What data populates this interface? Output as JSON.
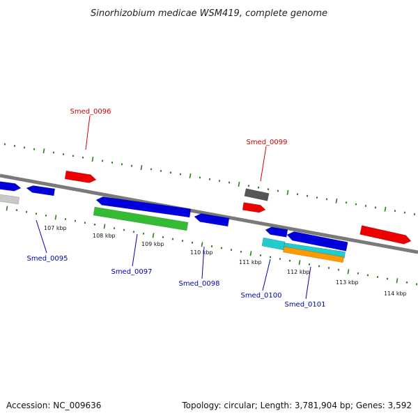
{
  "header": {
    "title": "Sinorhizobium medicae WSM419, complete genome"
  },
  "footer": {
    "accession": "Accession: NC_009636",
    "summary": "Topology: circular; Length: 3,781,904 bp; Genes: 3,592"
  },
  "colors": {
    "backbone": "#7a7a7a",
    "tick": "#2e7d1e",
    "red": "#ee0000",
    "blue": "#0000dd",
    "green": "#33bb33",
    "gray": "#555555",
    "lightgray": "#c8c8c8",
    "cyan": "#22cccc",
    "orange": "#ff9900",
    "label_red": "#cc0000",
    "label_blue": "#0000aa"
  },
  "kbp_labels": [
    "107 kbp",
    "108 kbp",
    "109 kbp",
    "110 kbp",
    "111 kbp",
    "112 kbp",
    "113 kbp",
    "114 kbp"
  ],
  "feature_labels": [
    "Smed_0096",
    "Smed_0099",
    "Smed_0095",
    "Smed_0097",
    "Smed_0098",
    "Smed_0100",
    "Smed_0101"
  ]
}
